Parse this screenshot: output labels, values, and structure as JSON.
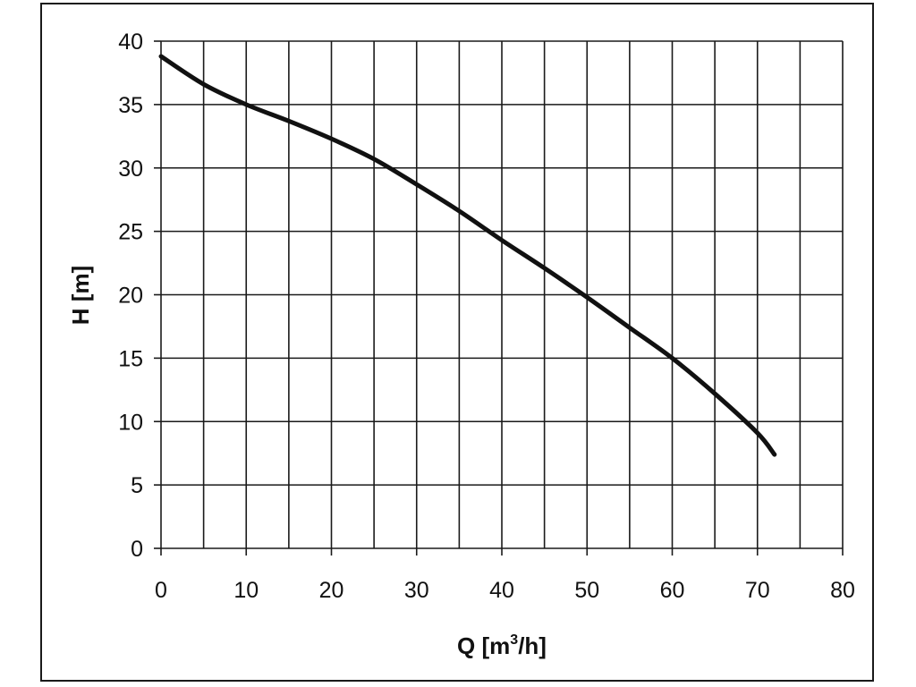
{
  "chart_data": {
    "type": "line",
    "title": "",
    "xlabel": "Q [m",
    "xlabel_sup": "3",
    "xlabel_tail": "/h]",
    "ylabel": "H [m]",
    "xlim": [
      0,
      80
    ],
    "ylim": [
      0,
      40
    ],
    "x_ticks": [
      "0",
      "10",
      "20",
      "30",
      "40",
      "50",
      "60",
      "70",
      "80"
    ],
    "y_ticks": [
      "0",
      "5",
      "10",
      "15",
      "20",
      "25",
      "30",
      "35",
      "40"
    ],
    "grid": true,
    "grid_step_x": 5,
    "grid_step_y": 5,
    "series": [
      {
        "color": "#111111",
        "x": [
          0,
          5,
          10,
          15,
          20,
          25,
          30,
          35,
          40,
          45,
          50,
          55,
          60,
          65,
          70,
          72
        ],
        "y": [
          38.8,
          36.6,
          35.0,
          33.7,
          32.3,
          30.7,
          28.7,
          26.6,
          24.3,
          22.1,
          19.8,
          17.4,
          15.0,
          12.2,
          9.1,
          7.4
        ]
      }
    ]
  }
}
